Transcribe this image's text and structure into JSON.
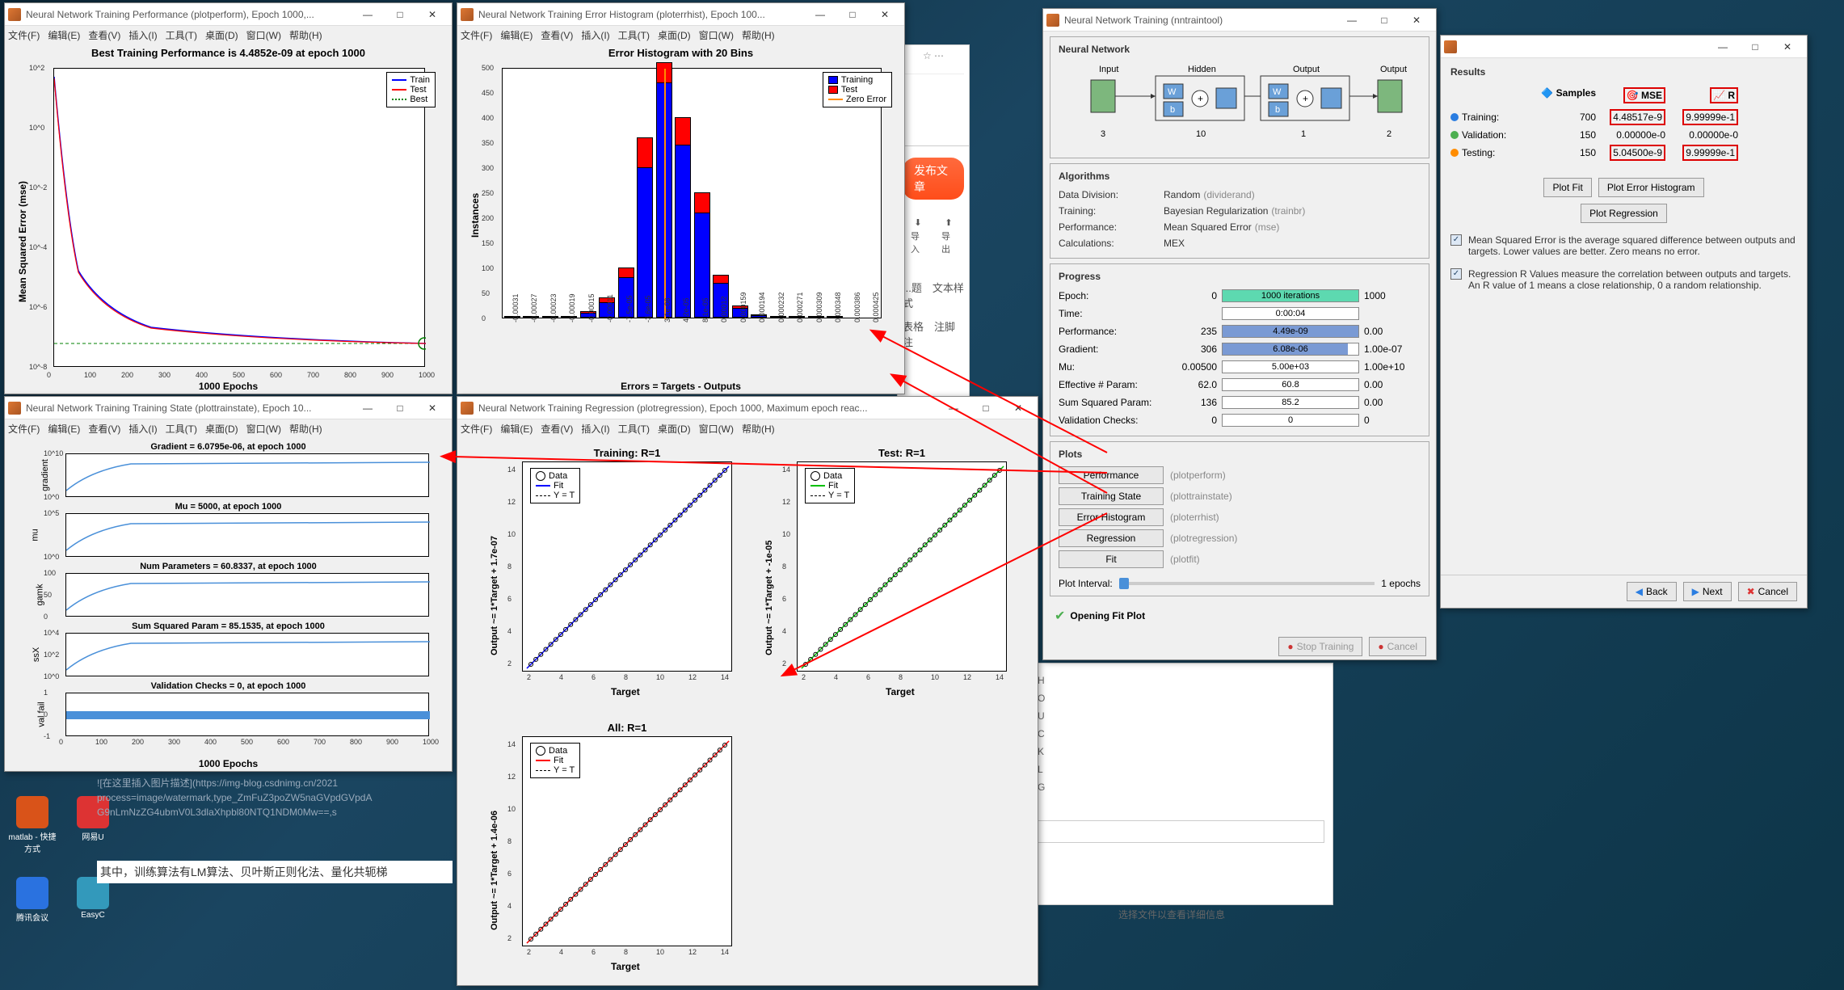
{
  "desktop": {
    "icons": [
      {
        "label": "matlab - 快捷方式",
        "color": "#d95319"
      },
      {
        "label": "网易U",
        "color": "#2a7"
      },
      {
        "label": "腾讯会议",
        "color": "#2a72e0"
      },
      {
        "label": "EasyC",
        "color": "#39b"
      }
    ]
  },
  "menubars": {
    "items": [
      "文件(F)",
      "编辑(E)",
      "查看(V)",
      "插入(I)",
      "工具(T)",
      "桌面(D)",
      "窗口(W)",
      "帮助(H)"
    ]
  },
  "win_perf": {
    "title": "Neural Network Training Performance (plotperform), Epoch 1000,...",
    "chart_title": "Best Training Performance is 4.4852e-09 at epoch 1000",
    "ylabel": "Mean Squared Error (mse)",
    "xlabel": "1000 Epochs",
    "legend": [
      "Train",
      "Test",
      "Best"
    ],
    "legend_colors": [
      "#0000ff",
      "#ff0000",
      "#008000"
    ],
    "xlim": [
      0,
      1000
    ],
    "xtick_step": 100,
    "yticks": [
      "10^2",
      "10^0",
      "10^-2",
      "10^-4",
      "10^-6",
      "10^-8"
    ],
    "background": "#ffffff"
  },
  "win_hist": {
    "title": "Neural Network Training Error Histogram (ploterrhist), Epoch 100...",
    "chart_title": "Error Histogram with 20 Bins",
    "ylabel": "Instances",
    "xlabel": "Errors = Targets - Outputs",
    "legend": [
      "Training",
      "Test",
      "Zero Error"
    ],
    "legend_colors": [
      "#0000ff",
      "#ff0000",
      "#ff8c00"
    ],
    "xtick_labels": [
      "-0.00031",
      "-0.00027",
      "-0.00023",
      "-0.00019",
      "-0.00015",
      "-0.00011",
      "-7.5e-05",
      "-3.6e-05",
      "3.1e-06",
      "4.2e-05",
      "8.1e-05",
      "0.00012",
      "0.000159",
      "0.000194",
      "0.000232",
      "0.000271",
      "0.000309",
      "0.000348",
      "0.000386",
      "0.000425"
    ],
    "yticks": [
      0,
      50,
      100,
      150,
      200,
      250,
      300,
      350,
      400,
      450,
      500
    ],
    "bars_train": [
      2,
      1,
      1,
      3,
      10,
      30,
      80,
      300,
      470,
      345,
      210,
      70,
      20,
      5,
      3,
      2,
      1,
      1,
      0,
      0
    ],
    "bars_test": [
      0,
      0,
      0,
      1,
      3,
      10,
      20,
      60,
      40,
      55,
      40,
      15,
      5,
      2,
      1,
      0,
      0,
      0,
      0,
      0
    ],
    "bar_color_train": "#0000ff",
    "bar_color_test": "#ff0000",
    "zero_line_color": "#ff8c00"
  },
  "win_state": {
    "title": "Neural Network Training Training State (plottrainstate), Epoch 10...",
    "charts": [
      {
        "title": "Gradient = 6.0795e-06, at epoch 1000",
        "ylab": "gradient",
        "yticks": [
          "10^10",
          "10^0"
        ]
      },
      {
        "title": "Mu = 5000, at epoch 1000",
        "ylab": "mu",
        "yticks": [
          "10^5",
          "10^0"
        ]
      },
      {
        "title": "Num Parameters = 60.8337, at epoch 1000",
        "ylab": "gamk",
        "yticks": [
          "100",
          "50",
          "0"
        ]
      },
      {
        "title": "Sum Squared Param = 85.1535, at epoch 1000",
        "ylab": "ssX",
        "yticks": [
          "10^4",
          "10^2",
          "10^0"
        ]
      },
      {
        "title": "Validation Checks = 0, at epoch 1000",
        "ylab": "val fail",
        "yticks": [
          "1",
          "0",
          "-1"
        ]
      }
    ],
    "xlabel": "1000 Epochs",
    "xticks": [
      0,
      100,
      200,
      300,
      400,
      500,
      600,
      700,
      800,
      900,
      1000
    ]
  },
  "win_reg": {
    "title": "Neural Network Training Regression (plotregression), Epoch 1000, Maximum epoch reac...",
    "panels": [
      {
        "title": "Training: R=1",
        "ylab": "Output ~= 1*Target + 1.7e-07",
        "fit_color": "#0000ff"
      },
      {
        "title": "Test: R=1",
        "ylab": "Output ~= 1*Target + -1e-05",
        "fit_color": "#00c000"
      },
      {
        "title": "All: R=1",
        "ylab": "Output ~= 1*Target + 1.4e-06",
        "fit_color": "#ff0000"
      }
    ],
    "legend": [
      "Data",
      "Fit",
      "Y = T"
    ],
    "xlabel": "Target",
    "xticks": [
      2,
      4,
      6,
      8,
      10,
      12,
      14
    ],
    "yticks": [
      2,
      4,
      6,
      8,
      10,
      12,
      14
    ]
  },
  "win_tool": {
    "title": "Neural Network Training (nntraintool)",
    "sec_nn": "Neural Network",
    "diagram": {
      "input": "Input",
      "inval": "3",
      "hidden": "Hidden",
      "hval": "10",
      "output": "Output",
      "oval": "1",
      "out2": "Output",
      "out2val": "2"
    },
    "sec_alg": "Algorithms",
    "alg_rows": [
      {
        "k": "Data Division:",
        "v": "Random",
        "h": "(dividerand)"
      },
      {
        "k": "Training:",
        "v": "Bayesian Regularization",
        "h": "(trainbr)"
      },
      {
        "k": "Performance:",
        "v": "Mean Squared Error",
        "h": "(mse)"
      },
      {
        "k": "Calculations:",
        "v": "MEX",
        "h": ""
      }
    ],
    "sec_prog": "Progress",
    "prog_rows": [
      {
        "k": "Epoch:",
        "lv": "0",
        "txt": "1000 iterations",
        "rv": "1000",
        "fill": 1.0,
        "fillc": "#5dd9b0"
      },
      {
        "k": "Time:",
        "lv": "",
        "txt": "0:00:04",
        "rv": "",
        "fill": 0,
        "fillc": "#fff"
      },
      {
        "k": "Performance:",
        "lv": "235",
        "txt": "4.49e-09",
        "rv": "0.00",
        "fill": 1.0,
        "fillc": "#7a9ad4"
      },
      {
        "k": "Gradient:",
        "lv": "306",
        "txt": "6.08e-06",
        "rv": "1.00e-07",
        "fill": 0.92,
        "fillc": "#7a9ad4"
      },
      {
        "k": "Mu:",
        "lv": "0.00500",
        "txt": "5.00e+03",
        "rv": "1.00e+10",
        "fill": 0,
        "fillc": "#fff"
      },
      {
        "k": "Effective # Param:",
        "lv": "62.0",
        "txt": "60.8",
        "rv": "0.00",
        "fill": 0,
        "fillc": "#fff"
      },
      {
        "k": "Sum Squared Param:",
        "lv": "136",
        "txt": "85.2",
        "rv": "0.00",
        "fill": 0,
        "fillc": "#fff"
      },
      {
        "k": "Validation Checks:",
        "lv": "0",
        "txt": "0",
        "rv": "0",
        "fill": 0,
        "fillc": "#fff"
      }
    ],
    "sec_plots": "Plots",
    "plot_btns": [
      {
        "label": "Performance",
        "hint": "(plotperform)"
      },
      {
        "label": "Training State",
        "hint": "(plottrainstate)"
      },
      {
        "label": "Error Histogram",
        "hint": "(ploterrhist)"
      },
      {
        "label": "Regression",
        "hint": "(plotregression)"
      },
      {
        "label": "Fit",
        "hint": "(plotfit)"
      }
    ],
    "plot_interval_label": "Plot Interval:",
    "plot_interval_val": "1 epochs",
    "status": "Opening Fit Plot",
    "btn_stop": "Stop Training",
    "btn_cancel": "Cancel"
  },
  "win_results": {
    "title": "",
    "heading": "Results",
    "cols": [
      "",
      "Samples",
      "MSE",
      "R"
    ],
    "col_icons": {
      "samples": "🔷",
      "mse": "🎯",
      "r": "📈"
    },
    "rows": [
      {
        "icon": "#2a7de1",
        "label": "Training:",
        "samples": "700",
        "mse": "4.48517e-9",
        "r": "9.99999e-1"
      },
      {
        "icon": "#4caf50",
        "label": "Validation:",
        "samples": "150",
        "mse": "0.00000e-0",
        "r": "0.00000e-0"
      },
      {
        "icon": "#ff8c00",
        "label": "Testing:",
        "samples": "150",
        "mse": "5.04500e-9",
        "r": "9.99999e-1"
      }
    ],
    "btns": [
      "Plot Fit",
      "Plot Error Histogram",
      "Plot Regression"
    ],
    "info1": "Mean Squared Error is the average squared difference between outputs and targets. Lower values are better. Zero means no error.",
    "info2": "Regression R Values measure the correlation between outputs and targets. An R value of 1 means a close relationship, 0 a random relationship.",
    "back": "Back",
    "next": "Next",
    "cancel": "Cancel"
  },
  "browser": {
    "publish": "发布文章",
    "import": "导入",
    "export": "导出",
    "tabs": [
      "...题",
      "文本样式",
      "表格",
      "注脚",
      "注"
    ],
    "placeholder_text": "![在这里插入图片描述](https://img-blog.csdnimg.cn/2021\nprocess=image/watermark,type_ZmFuZ3poZW5naGVpdGVpdA\nG9nLmNzZG4ubmV0L3dlaXhpbl80NTQ1NDM0Mw==,s",
    "body_text": "其中，训练算法有LM算法、贝叶斯正则化法、量化共轭梯",
    "shortcuts": [
      "ift + H",
      "ift + O",
      "ift + U",
      "ift + C",
      "ift + K",
      "ift + L",
      "ift + G"
    ],
    "footer": "选择文件以查看详细信息"
  }
}
